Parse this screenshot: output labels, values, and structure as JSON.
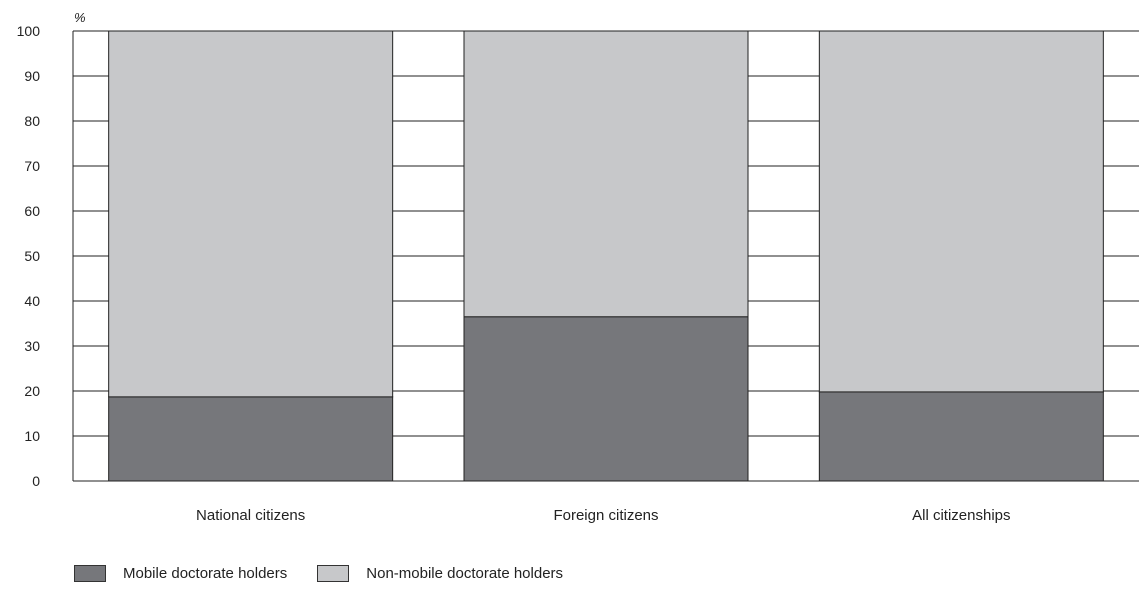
{
  "chart_data": {
    "type": "bar",
    "stacked": true,
    "unit_label": "%",
    "categories": [
      "National citizens",
      "Foreign citizens",
      "All citizenships"
    ],
    "series": [
      {
        "name": "Mobile doctorate holders",
        "values": [
          18.7,
          36.5,
          19.8
        ],
        "color": "#76777b"
      },
      {
        "name": "Non-mobile doctorate holders",
        "values": [
          81.3,
          63.5,
          80.2
        ],
        "color": "#c7c8ca"
      }
    ],
    "y_ticks": [
      0,
      10,
      20,
      30,
      40,
      50,
      60,
      70,
      80,
      90,
      100
    ],
    "ylim": [
      0,
      100
    ],
    "grid": true,
    "legend_position": "bottom-left"
  }
}
